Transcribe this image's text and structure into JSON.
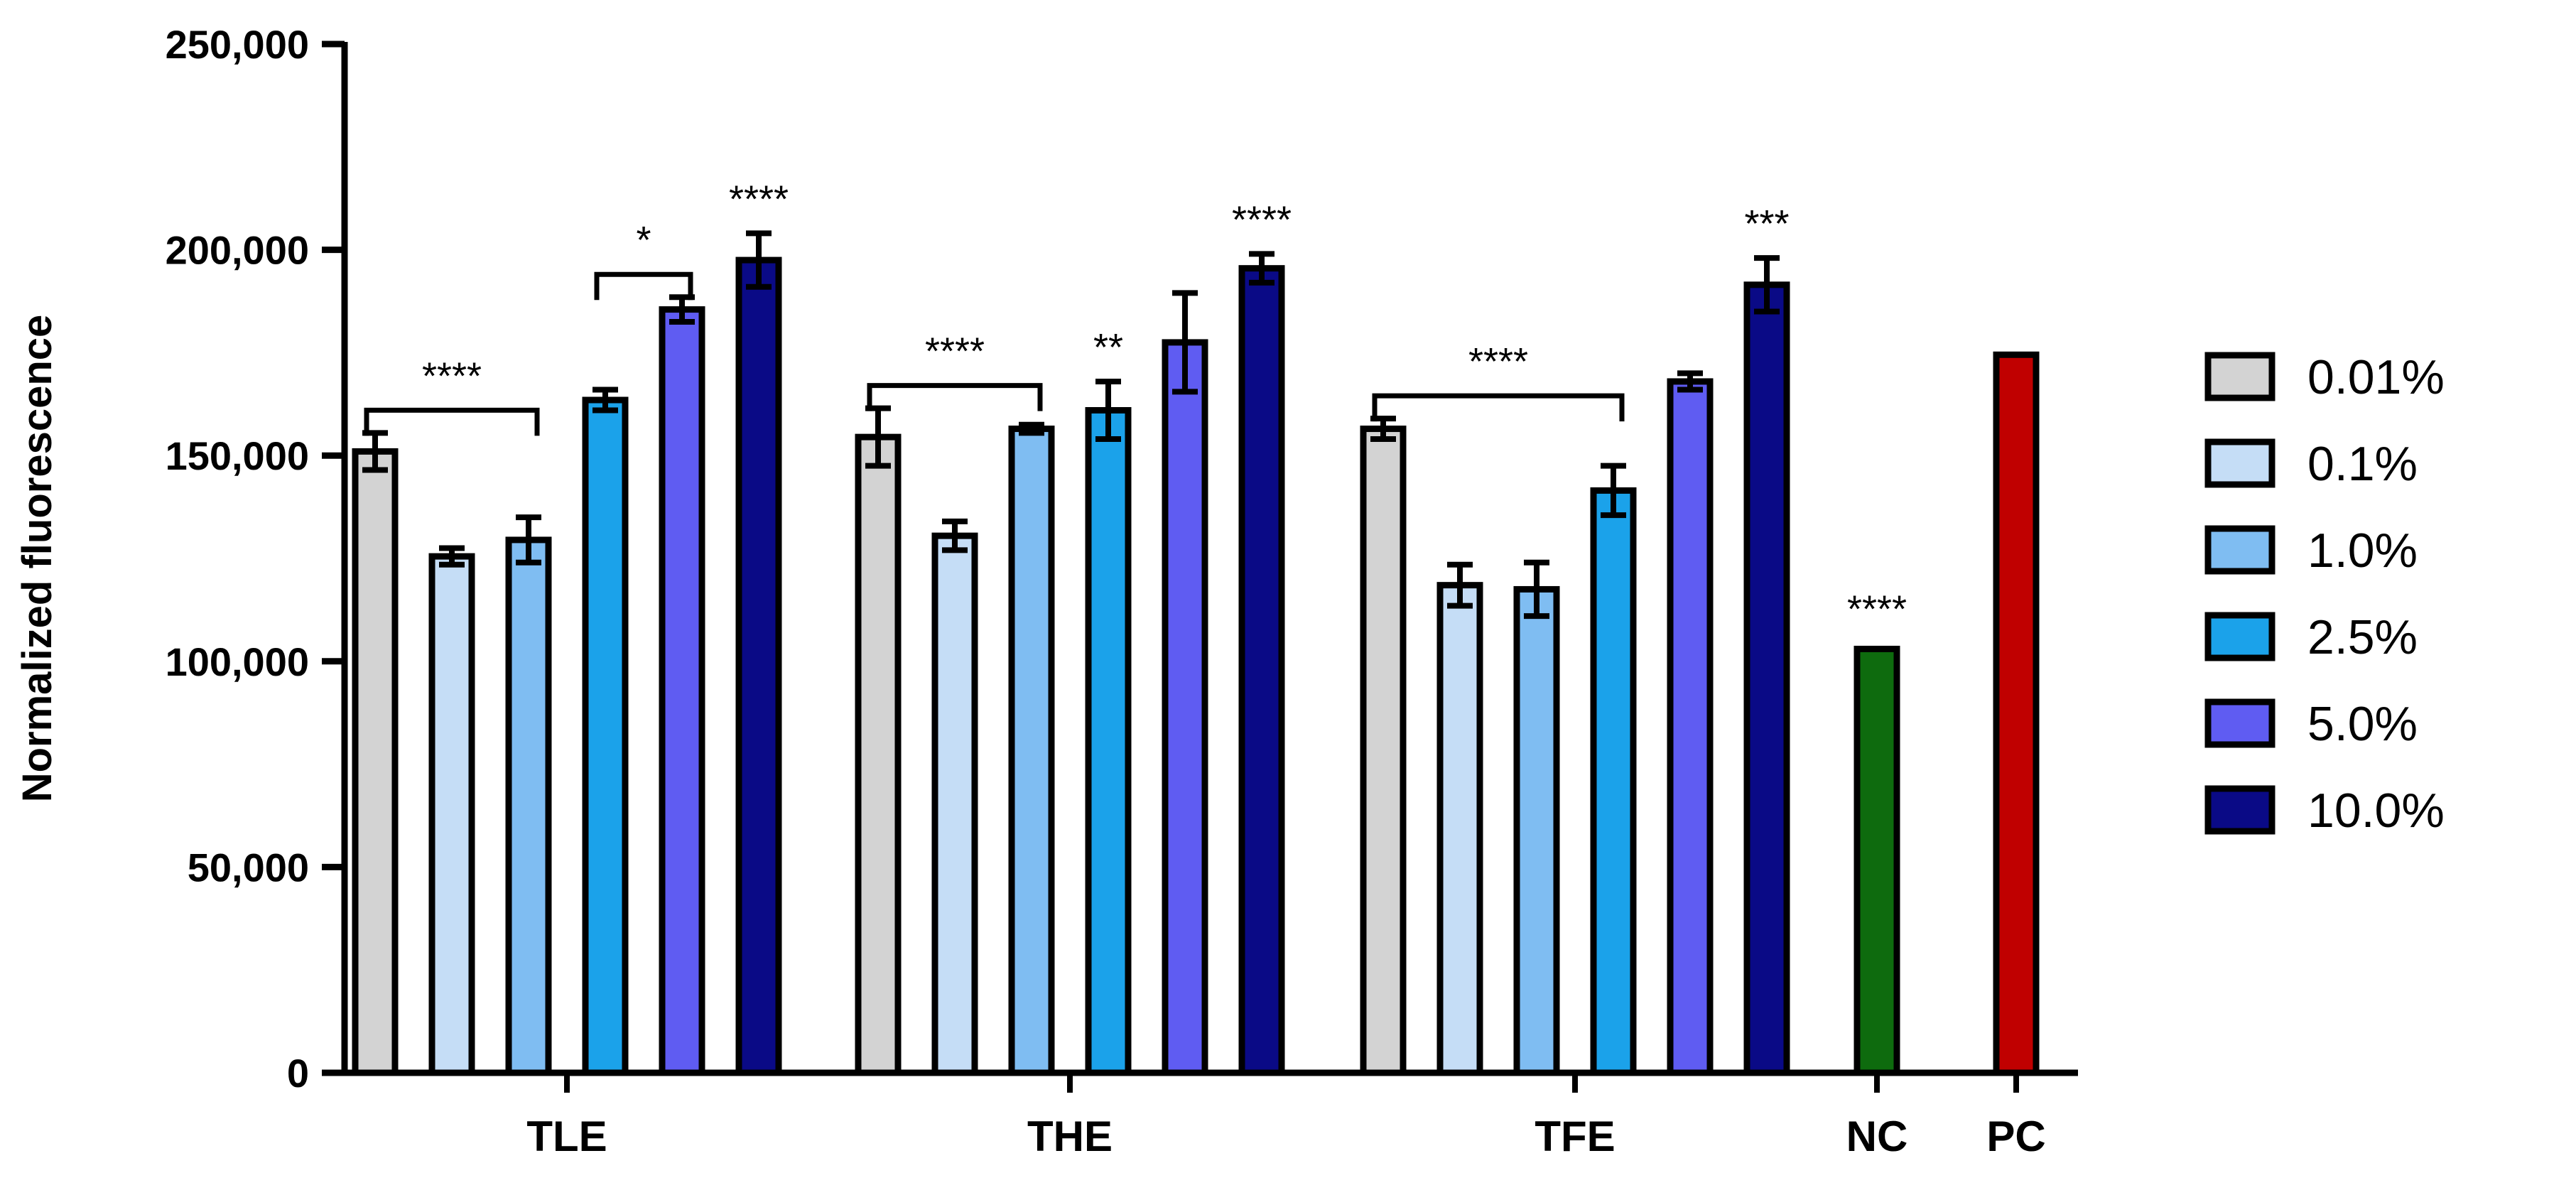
{
  "chart_data": {
    "type": "bar",
    "title": "",
    "xlabel": "",
    "ylabel": "Normalized fluorescence",
    "ylim": [
      0,
      250000
    ],
    "yticks": [
      0,
      50000,
      100000,
      150000,
      200000,
      250000
    ],
    "ytick_labels": [
      "0",
      "50,000",
      "100,000",
      "150,000",
      "200,000",
      "250,000"
    ],
    "grid": false,
    "legend_position": "right",
    "series": [
      {
        "name": "0.01%",
        "color": "#D3D3D3"
      },
      {
        "name": "0.1%",
        "color": "#C5DDF6"
      },
      {
        "name": "1.0%",
        "color": "#7FBDF2"
      },
      {
        "name": "2.5%",
        "color": "#1BA2EA"
      },
      {
        "name": "5.0%",
        "color": "#5F5CF2"
      },
      {
        "name": "10.0%",
        "color": "#0A0A86"
      }
    ],
    "groups": [
      {
        "label": "TLE",
        "values": [
          151000,
          125500,
          129500,
          163500,
          185500,
          197500
        ],
        "errors": [
          4500,
          2000,
          5500,
          2500,
          3000,
          6500
        ],
        "significance": [
          {
            "text": "****",
            "from": 0,
            "to": 2,
            "bracket": true
          },
          {
            "text": "*",
            "from": 3,
            "to": 4,
            "bracket": true
          },
          {
            "text": "****",
            "from": 5,
            "to": 5,
            "bracket": false
          }
        ]
      },
      {
        "label": "THE",
        "values": [
          154500,
          130500,
          156500,
          161000,
          177500,
          195500
        ],
        "errors": [
          7000,
          3500,
          1000,
          7000,
          12000,
          3500
        ],
        "significance": [
          {
            "text": "****",
            "from": 0,
            "to": 2,
            "bracket": true
          },
          {
            "text": "**",
            "from": 3,
            "to": 3,
            "bracket": false
          },
          {
            "text": "****",
            "from": 5,
            "to": 5,
            "bracket": false
          }
        ]
      },
      {
        "label": "TFE",
        "values": [
          156500,
          118500,
          117500,
          141500,
          168000,
          191500
        ],
        "errors": [
          2500,
          5000,
          6500,
          6000,
          2000,
          6500
        ],
        "significance": [
          {
            "text": "****",
            "from": 0,
            "to": 3,
            "bracket": true
          },
          {
            "text": "***",
            "from": 5,
            "to": 5,
            "bracket": false
          }
        ]
      }
    ],
    "controls": [
      {
        "label": "NC",
        "value": 103000,
        "color": "#0E6B0E",
        "significance": "****"
      },
      {
        "label": "PC",
        "value": 174500,
        "color": "#C00000",
        "significance": ""
      }
    ]
  }
}
